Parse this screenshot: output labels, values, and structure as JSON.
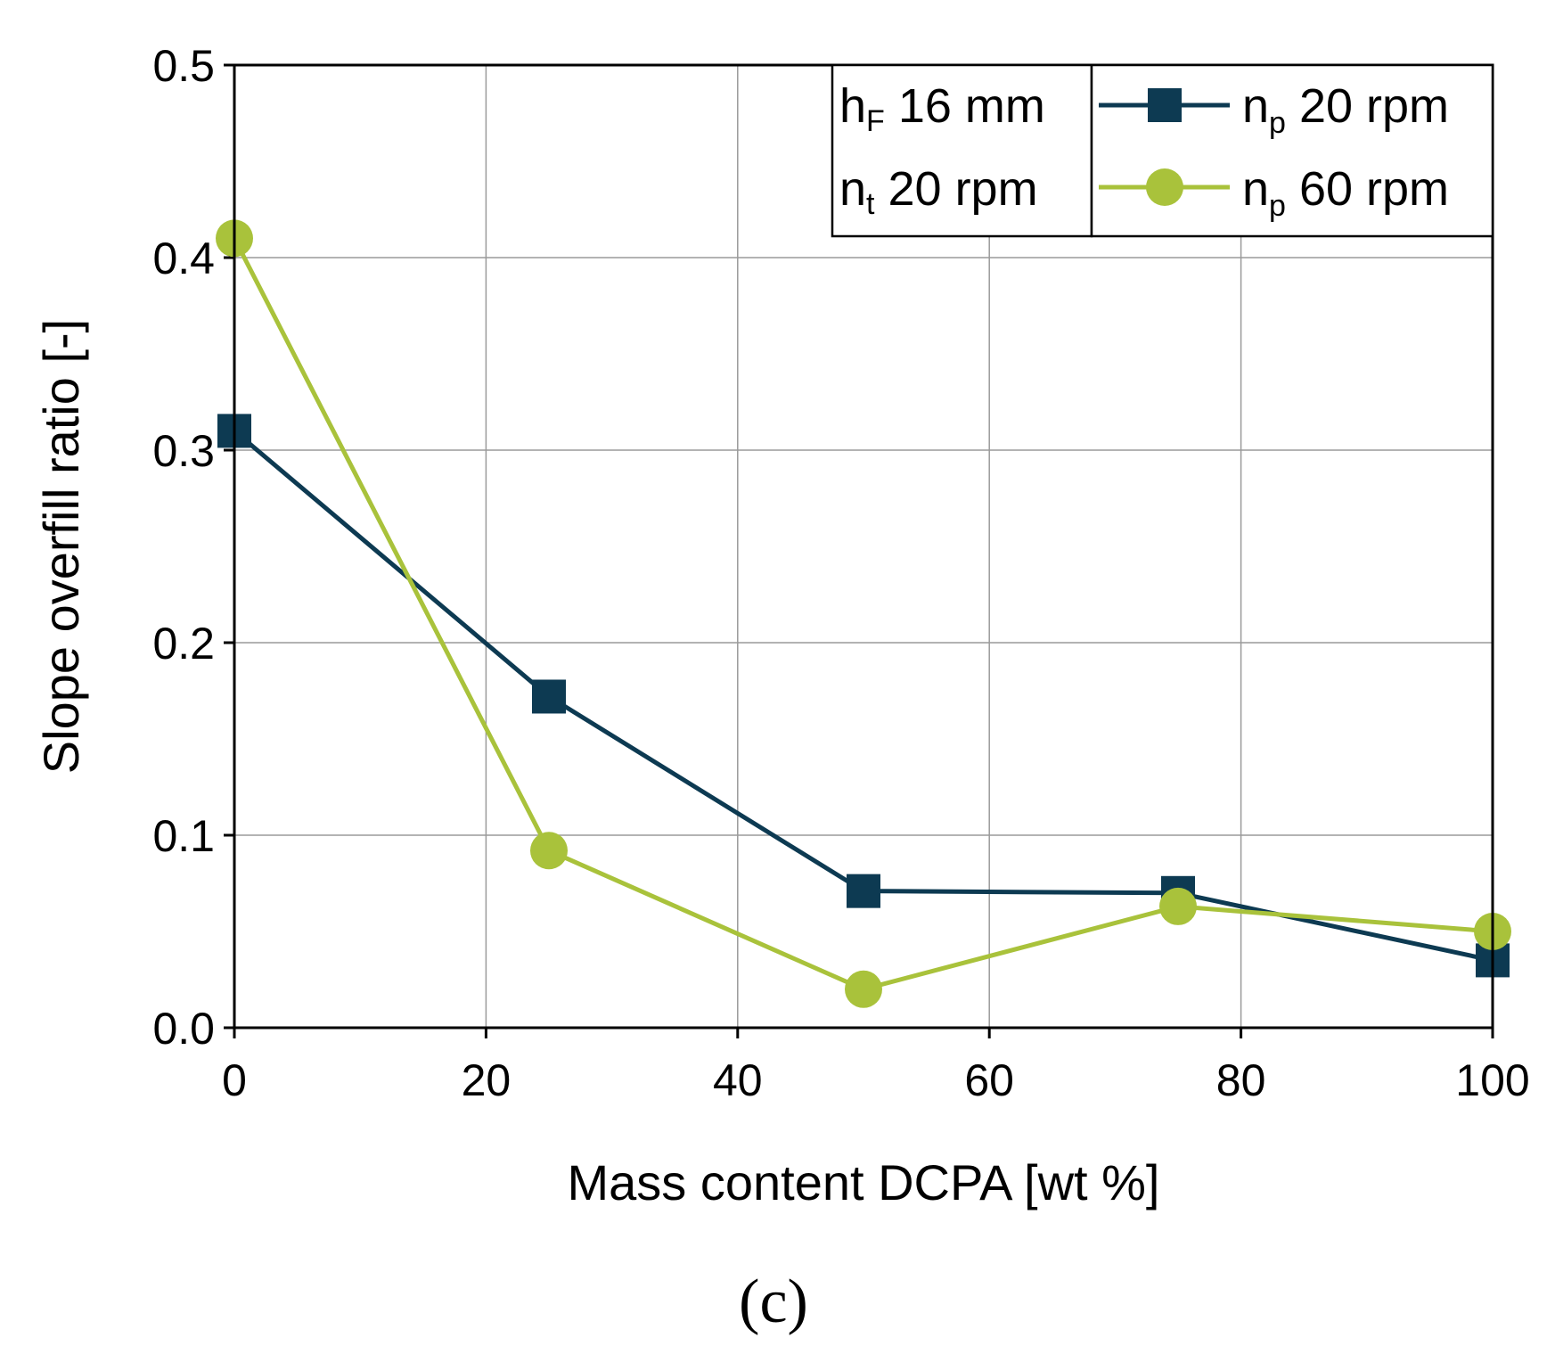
{
  "chart_data": {
    "type": "line",
    "title": "",
    "xlabel": "Mass content DCPA [wt %]",
    "ylabel": "Slope overfill ratio [-]",
    "xlim": [
      0,
      100
    ],
    "ylim": [
      0.0,
      0.5
    ],
    "xticks": [
      0,
      20,
      40,
      60,
      80,
      100
    ],
    "xtick_labels": [
      "0",
      "20",
      "40",
      "60",
      "80",
      "100"
    ],
    "yticks": [
      0.0,
      0.1,
      0.2,
      0.3,
      0.4,
      0.5
    ],
    "ytick_labels": [
      "0.0",
      "0.1",
      "0.2",
      "0.3",
      "0.4",
      "0.5"
    ],
    "grid": true,
    "x": [
      0,
      25,
      50,
      75,
      100
    ],
    "series": [
      {
        "name": "n_p 20 rpm",
        "label_main": "n",
        "label_sub": "p",
        "label_rest": " 20 rpm",
        "marker": "square",
        "color": "#0d3a52",
        "values": [
          0.31,
          0.172,
          0.071,
          0.07,
          0.035
        ]
      },
      {
        "name": "n_p 60 rpm",
        "label_main": "n",
        "label_sub": "p",
        "label_rest": " 60 rpm",
        "marker": "circle",
        "color": "#a9c23b",
        "values": [
          0.41,
          0.092,
          0.02,
          0.063,
          0.05
        ]
      }
    ],
    "conditions": [
      {
        "main": "h",
        "sub": "F",
        "rest": " 16 mm"
      },
      {
        "main": "n",
        "sub": "t",
        "rest": " 20 rpm"
      }
    ],
    "legend_position": "top-right",
    "panel_label": "(c)"
  }
}
